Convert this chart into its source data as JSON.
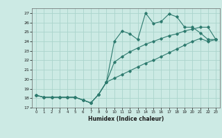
{
  "xlabel": "Humidex (Indice chaleur)",
  "bg_color": "#cceae4",
  "grid_color": "#aad4cc",
  "line_color": "#2d7a6e",
  "xlim": [
    -0.5,
    23.5
  ],
  "ylim": [
    17,
    27.5
  ],
  "yticks": [
    17,
    18,
    19,
    20,
    21,
    22,
    23,
    24,
    25,
    26,
    27
  ],
  "xticks": [
    0,
    1,
    2,
    3,
    4,
    5,
    6,
    7,
    8,
    9,
    10,
    11,
    12,
    13,
    14,
    15,
    16,
    17,
    18,
    19,
    20,
    21,
    22,
    23
  ],
  "series1_x": [
    0,
    1,
    2,
    3,
    4,
    5,
    6,
    7,
    8,
    9,
    10,
    11,
    12,
    13,
    14,
    15,
    16,
    17,
    18,
    19,
    20,
    21,
    22,
    23
  ],
  "series1_y": [
    18.3,
    18.1,
    18.1,
    18.1,
    18.1,
    18.1,
    17.8,
    17.5,
    18.4,
    19.7,
    24.0,
    25.1,
    24.8,
    24.2,
    27.0,
    25.9,
    26.1,
    26.9,
    26.6,
    25.5,
    25.5,
    24.9,
    24.2,
    24.2
  ],
  "series2_x": [
    0,
    1,
    2,
    3,
    4,
    5,
    6,
    7,
    8,
    9,
    10,
    11,
    12,
    13,
    14,
    15,
    16,
    17,
    18,
    19,
    20,
    21,
    22,
    23
  ],
  "series2_y": [
    18.3,
    18.1,
    18.1,
    18.1,
    18.1,
    18.1,
    17.8,
    17.5,
    18.4,
    19.7,
    21.8,
    22.4,
    22.9,
    23.3,
    23.7,
    24.0,
    24.3,
    24.6,
    24.8,
    25.1,
    25.3,
    25.5,
    25.5,
    24.2
  ],
  "series3_x": [
    0,
    1,
    2,
    3,
    4,
    5,
    6,
    7,
    8,
    9,
    10,
    11,
    12,
    13,
    14,
    15,
    16,
    17,
    18,
    19,
    20,
    21,
    22,
    23
  ],
  "series3_y": [
    18.3,
    18.1,
    18.1,
    18.1,
    18.1,
    18.1,
    17.8,
    17.5,
    18.4,
    19.7,
    20.1,
    20.5,
    20.9,
    21.3,
    21.7,
    22.0,
    22.4,
    22.8,
    23.2,
    23.6,
    24.0,
    24.3,
    24.0,
    24.2
  ]
}
